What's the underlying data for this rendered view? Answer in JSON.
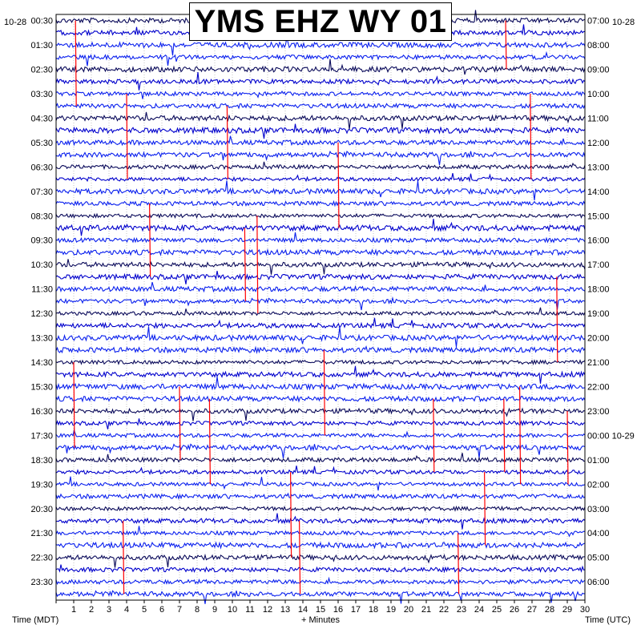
{
  "title": "YMS EHZ WY 01",
  "date_left": "10-28",
  "date_right": "10-28",
  "xlabel": "+ Minutes",
  "left_axis_title": "Time (MDT)",
  "right_axis_title": "Time (UTC)",
  "colors": {
    "trace_dark": "#0a0a5a",
    "trace_mid": "#0000cc",
    "trace_blue": "#0a20ee",
    "event": "#ff0000",
    "grid": "#888888"
  },
  "chart_data": {
    "type": "line",
    "title": "YMS EHZ WY 01",
    "xlabel": "+ Minutes",
    "xlim": [
      0,
      30
    ],
    "x_ticks": [
      "1",
      "2",
      "3",
      "4",
      "5",
      "6",
      "7",
      "8",
      "9",
      "10",
      "11",
      "12",
      "13",
      "14",
      "15",
      "16",
      "17",
      "18",
      "19",
      "20",
      "21",
      "22",
      "23",
      "24",
      "25",
      "26",
      "27",
      "28",
      "29",
      "30"
    ],
    "rows_per_hour": 2,
    "row_count": 48,
    "left_labels": [
      "00:30",
      "01:30",
      "02:30",
      "03:30",
      "04:30",
      "05:30",
      "06:30",
      "07:30",
      "08:30",
      "09:30",
      "10:30",
      "11:30",
      "12:30",
      "13:30",
      "14:30",
      "15:30",
      "16:30",
      "17:30",
      "18:30",
      "19:30",
      "20:30",
      "21:30",
      "22:30",
      "23:30"
    ],
    "right_labels": [
      "07:00",
      "08:00",
      "09:00",
      "10:00",
      "11:00",
      "12:00",
      "13:00",
      "14:00",
      "15:00",
      "16:00",
      "17:00",
      "18:00",
      "19:00",
      "20:00",
      "21:00",
      "22:00",
      "23:00",
      "00:00 10-29",
      "01:00",
      "02:00",
      "03:00",
      "04:00",
      "05:00",
      "06:00"
    ],
    "trace_color_cycle": [
      "#0a0a5a",
      "#0000cc",
      "#0a20ee",
      "#0a20ee"
    ],
    "event_markers": [
      {
        "minute": 1.1,
        "row_start": 0,
        "row_end": 7
      },
      {
        "minute": 4.0,
        "row_start": 6,
        "row_end": 13
      },
      {
        "minute": 9.7,
        "row_start": 7,
        "row_end": 13
      },
      {
        "minute": 25.5,
        "row_start": 0,
        "row_end": 4
      },
      {
        "minute": 26.9,
        "row_start": 6,
        "row_end": 13
      },
      {
        "minute": 16.0,
        "row_start": 10,
        "row_end": 17
      },
      {
        "minute": 5.3,
        "row_start": 15,
        "row_end": 21
      },
      {
        "minute": 10.7,
        "row_start": 17,
        "row_end": 23
      },
      {
        "minute": 11.4,
        "row_start": 16,
        "row_end": 24
      },
      {
        "minute": 28.4,
        "row_start": 21,
        "row_end": 28
      },
      {
        "minute": 15.2,
        "row_start": 27,
        "row_end": 34
      },
      {
        "minute": 1.0,
        "row_start": 28,
        "row_end": 35
      },
      {
        "minute": 7.0,
        "row_start": 30,
        "row_end": 36
      },
      {
        "minute": 8.7,
        "row_start": 31,
        "row_end": 38
      },
      {
        "minute": 21.4,
        "row_start": 31,
        "row_end": 37
      },
      {
        "minute": 25.4,
        "row_start": 31,
        "row_end": 37
      },
      {
        "minute": 26.3,
        "row_start": 30,
        "row_end": 38
      },
      {
        "minute": 29.0,
        "row_start": 32,
        "row_end": 38
      },
      {
        "minute": 13.3,
        "row_start": 37,
        "row_end": 44
      },
      {
        "minute": 24.3,
        "row_start": 37,
        "row_end": 43
      },
      {
        "minute": 3.8,
        "row_start": 41,
        "row_end": 47
      },
      {
        "minute": 13.8,
        "row_start": 41,
        "row_end": 47
      },
      {
        "minute": 22.8,
        "row_start": 42,
        "row_end": 47
      }
    ]
  }
}
